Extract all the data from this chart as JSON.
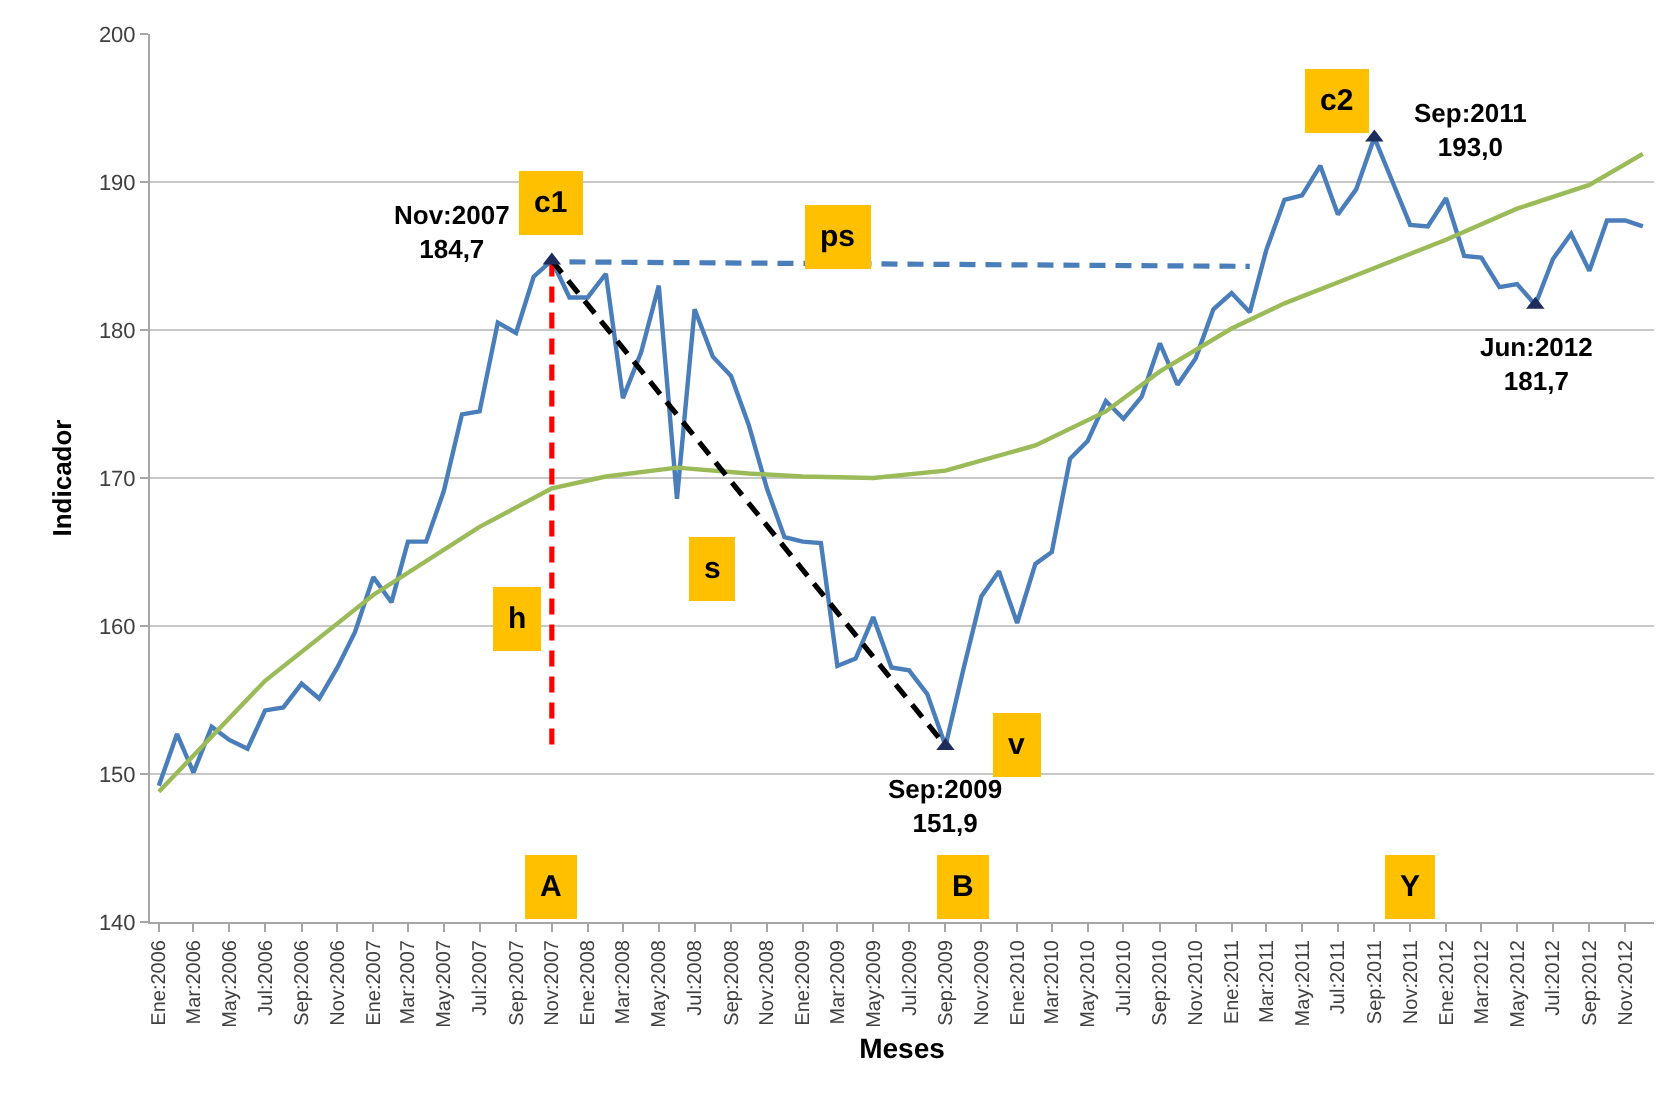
{
  "chart_data": {
    "type": "line",
    "xlabel": "Meses",
    "ylabel": "Indicador",
    "ylim": [
      140,
      200
    ],
    "yticks": [
      140,
      150,
      160,
      170,
      180,
      190,
      200
    ],
    "xlim": [
      "2005-12-17",
      "2012-12-20"
    ],
    "xticks": [
      {
        "value": "2006-01",
        "label": "Ene:2006"
      },
      {
        "value": "2006-03",
        "label": "Mar:2006"
      },
      {
        "value": "2006-05",
        "label": "May:2006"
      },
      {
        "value": "2006-07",
        "label": "Jul:2006"
      },
      {
        "value": "2006-09",
        "label": "Sep:2006"
      },
      {
        "value": "2006-11",
        "label": "Nov:2006"
      },
      {
        "value": "2007-01",
        "label": "Ene:2007"
      },
      {
        "value": "2007-03",
        "label": "Mar:2007"
      },
      {
        "value": "2007-05",
        "label": "May:2007"
      },
      {
        "value": "2007-07",
        "label": "Jul:2007"
      },
      {
        "value": "2007-09",
        "label": "Sep:2007"
      },
      {
        "value": "2007-11",
        "label": "Nov:2007"
      },
      {
        "value": "2008-01",
        "label": "Ene:2008"
      },
      {
        "value": "2008-03",
        "label": "Mar:2008"
      },
      {
        "value": "2008-05",
        "label": "May:2008"
      },
      {
        "value": "2008-07",
        "label": "Jul:2008"
      },
      {
        "value": "2008-09",
        "label": "Sep:2008"
      },
      {
        "value": "2008-11",
        "label": "Nov:2008"
      },
      {
        "value": "2009-01",
        "label": "Ene:2009"
      },
      {
        "value": "2009-03",
        "label": "Mar:2009"
      },
      {
        "value": "2009-05",
        "label": "May:2009"
      },
      {
        "value": "2009-07",
        "label": "Jul:2009"
      },
      {
        "value": "2009-09",
        "label": "Sep:2009"
      },
      {
        "value": "2009-11",
        "label": "Nov:2009"
      },
      {
        "value": "2010-01",
        "label": "Ene:2010"
      },
      {
        "value": "2010-03",
        "label": "Mar:2010"
      },
      {
        "value": "2010-05",
        "label": "May:2010"
      },
      {
        "value": "2010-07",
        "label": "Jul:2010"
      },
      {
        "value": "2010-09",
        "label": "Sep:2010"
      },
      {
        "value": "2010-11",
        "label": "Nov:2010"
      },
      {
        "value": "2011-01",
        "label": "Ene:2011"
      },
      {
        "value": "2011-03",
        "label": "Mar:2011"
      },
      {
        "value": "2011-05",
        "label": "May:2011"
      },
      {
        "value": "2011-07",
        "label": "Jul:2011"
      },
      {
        "value": "2011-09",
        "label": "Sep:2011"
      },
      {
        "value": "2011-11",
        "label": "Nov:2011"
      },
      {
        "value": "2012-01",
        "label": "Ene:2012"
      },
      {
        "value": "2012-03",
        "label": "Mar:2012"
      },
      {
        "value": "2012-05",
        "label": "May:2012"
      },
      {
        "value": "2012-07",
        "label": "Jul:2012"
      },
      {
        "value": "2012-09",
        "label": "Sep:2012"
      },
      {
        "value": "2012-11",
        "label": "Nov:2012"
      }
    ],
    "grid": "y",
    "series": [
      {
        "color": "#4a7ebb",
        "line_style": "solid",
        "x": [
          "2006-01",
          "2006-02",
          "2006-03",
          "2006-04",
          "2006-05",
          "2006-06",
          "2006-07",
          "2006-08",
          "2006-09",
          "2006-10",
          "2006-11",
          "2006-12",
          "2007-01",
          "2007-02",
          "2007-03",
          "2007-04",
          "2007-05",
          "2007-06",
          "2007-07",
          "2007-08",
          "2007-09",
          "2007-10",
          "2007-11",
          "2007-12",
          "2008-01",
          "2008-02",
          "2008-03",
          "2008-04",
          "2008-05",
          "2008-06",
          "2008-07",
          "2008-08",
          "2008-09",
          "2008-10",
          "2008-11",
          "2008-12",
          "2009-01",
          "2009-02",
          "2009-03",
          "2009-04",
          "2009-05",
          "2009-06",
          "2009-07",
          "2009-08",
          "2009-09",
          "2009-10",
          "2009-11",
          "2009-12",
          "2010-01",
          "2010-02",
          "2010-03",
          "2010-04",
          "2010-05",
          "2010-06",
          "2010-07",
          "2010-08",
          "2010-09",
          "2010-10",
          "2010-11",
          "2010-12",
          "2011-01",
          "2011-02",
          "2011-03",
          "2011-04",
          "2011-05",
          "2011-06",
          "2011-07",
          "2011-08",
          "2011-09",
          "2011-10",
          "2011-11",
          "2011-12",
          "2012-01",
          "2012-02",
          "2012-03",
          "2012-04",
          "2012-05",
          "2012-06",
          "2012-07",
          "2012-08",
          "2012-09",
          "2012-10",
          "2012-11",
          "2012-12"
        ],
        "values": [
          149.2,
          152.7,
          150.1,
          153.2,
          152.3,
          151.7,
          154.3,
          154.5,
          156.1,
          155.1,
          157.2,
          159.6,
          163.3,
          161.6,
          165.7,
          165.7,
          169.1,
          174.3,
          174.5,
          180.5,
          179.8,
          183.6,
          184.7,
          182.2,
          182.2,
          183.8,
          175.4,
          178.5,
          183.0,
          168.6,
          181.4,
          178.2,
          176.9,
          173.6,
          169.3,
          166.0,
          165.7,
          165.6,
          157.3,
          157.8,
          160.6,
          157.2,
          157.0,
          155.4,
          151.9,
          157.0,
          162.0,
          163.7,
          160.2,
          164.2,
          165.0,
          171.3,
          172.5,
          175.2,
          174.0,
          175.5,
          179.1,
          176.3,
          178.1,
          181.4,
          182.5,
          181.2,
          185.4,
          188.8,
          189.1,
          191.1,
          187.8,
          189.5,
          193.0,
          190.1,
          187.1,
          187.0,
          188.9,
          185.0,
          184.9,
          182.9,
          183.1,
          181.7,
          184.8,
          186.5,
          184.0,
          187.4,
          187.4,
          187.0
        ]
      },
      {
        "color": "#9bbb59",
        "line_style": "solid",
        "x": [
          "2006-01",
          "2006-07",
          "2007-01",
          "2007-07",
          "2007-11",
          "2008-02",
          "2008-06",
          "2008-10",
          "2009-01",
          "2009-05",
          "2009-09",
          "2010-02",
          "2010-06",
          "2010-09",
          "2011-01",
          "2011-04",
          "2011-08",
          "2012-01",
          "2012-05",
          "2012-09",
          "2012-12"
        ],
        "values": [
          148.8,
          156.3,
          162.1,
          166.7,
          169.3,
          170.1,
          170.7,
          170.3,
          170.1,
          170.0,
          170.5,
          172.2,
          174.5,
          177.2,
          180.1,
          181.8,
          183.7,
          186.1,
          188.2,
          189.8,
          191.9
        ]
      },
      {
        "type": "line",
        "color": "#ff0000",
        "line_style": "dashed",
        "x": [
          "2007-11",
          "2007-11"
        ],
        "values": [
          184.7,
          151.8
        ]
      },
      {
        "type": "line",
        "color": "#000000",
        "line_style": "dashed",
        "x": [
          "2007-11",
          "2009-09"
        ],
        "values": [
          184.7,
          151.9
        ]
      },
      {
        "type": "line",
        "color": "#4a7ebb",
        "line_style": "dashed",
        "x": [
          "2007-12",
          "2011-02"
        ],
        "values": [
          184.6,
          184.3
        ]
      },
      {
        "type": "scatter",
        "color": "#1f2d5c",
        "marker": "triangle",
        "x": [
          "2007-11",
          "2009-09",
          "2011-09",
          "2012-06"
        ],
        "values": [
          184.7,
          151.9,
          193.0,
          181.7
        ],
        "value_labels": [
          "Nov:2007\n184,7",
          "Sep:2009\n151,9",
          "Sep:2011\n193,0",
          "Jun:2012\n181,7"
        ]
      }
    ],
    "annotations": [
      {
        "text": "c1",
        "x": "2007-11",
        "y": 188.6
      },
      {
        "text": "h",
        "x": "2007-09",
        "y": 160.5
      },
      {
        "text": "s",
        "x": "2008-08",
        "y": 163.8
      },
      {
        "text": "ps",
        "x": "2009-03",
        "y": 186.3
      },
      {
        "text": "v",
        "x": "2010-01",
        "y": 152.0
      },
      {
        "text": "c2",
        "x": "2011-07",
        "y": 195.5
      },
      {
        "text": "A",
        "x": "2007-11",
        "y": 142.3
      },
      {
        "text": "B",
        "x": "2009-10",
        "y": 142.3
      },
      {
        "text": "Y",
        "x": "2011-11",
        "y": 142.3
      }
    ]
  }
}
